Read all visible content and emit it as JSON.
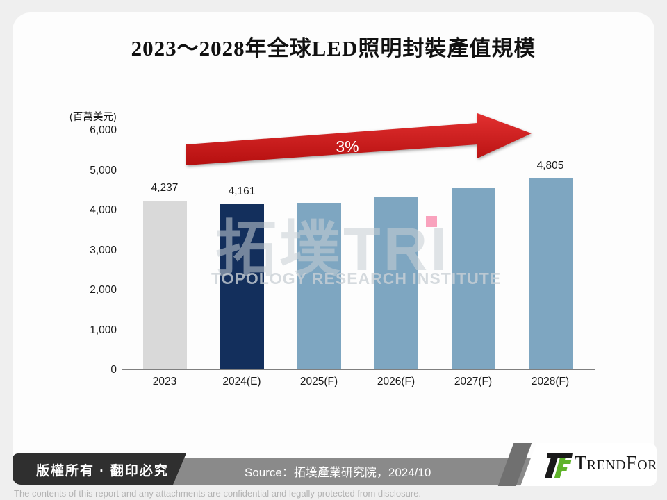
{
  "slide": {
    "title": "2023～2028年全球LED照明封裝產值規模"
  },
  "chart_data": {
    "type": "bar",
    "title": "2023～2028年全球LED照明封裝產值規模",
    "unit_label": "(百萬美元)",
    "categories": [
      "2023",
      "2024(E)",
      "2025(F)",
      "2026(F)",
      "2027(F)",
      "2028(F)"
    ],
    "values": [
      4237,
      4161,
      4180,
      4340,
      4570,
      4805
    ],
    "value_labels": [
      "4,237",
      "4,161",
      null,
      null,
      null,
      "4,805"
    ],
    "bar_colors": [
      "#d9d9d9",
      "#132f5c",
      "#7ea6c1",
      "#7ea6c1",
      "#7ea6c1",
      "#7ea6c1"
    ],
    "ylim": [
      0,
      6000
    ],
    "ytick_labels": [
      "6,000",
      "5,000",
      "4,000",
      "3,000",
      "2,000",
      "1,000",
      "0"
    ],
    "ytick_values": [
      6000,
      5000,
      4000,
      3000,
      2000,
      1000,
      0
    ],
    "grid": false,
    "legend": null,
    "growth_annotation": "3%"
  },
  "watermark": {
    "big_text": "拓墣TRI",
    "sub_text": "TOPOLOGY RESEARCH INSTITUTE"
  },
  "decor": {
    "arrow_color_top": "#e23030",
    "arrow_color_bottom": "#b50f0f",
    "pink_marker_color": "#f9a2bd"
  },
  "footer": {
    "copyright": "版權所有 · 翻印必究",
    "source": "Source：拓墣產業研究院，2024/10",
    "brand_wordmark": "TrendForce",
    "disclaimer": "The contents of this report and any attachments are confidential and legally protected from disclosure."
  }
}
